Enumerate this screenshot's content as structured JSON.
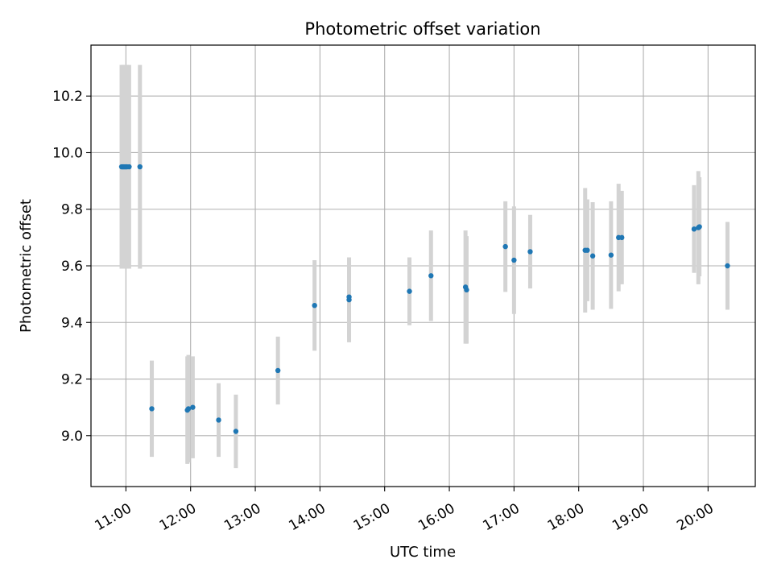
{
  "chart_data": {
    "type": "scatter",
    "title": "Photometric offset variation",
    "xlabel": "UTC time",
    "ylabel": "Photometric offset",
    "x_tick_labels": [
      "11:00",
      "12:00",
      "13:00",
      "14:00",
      "15:00",
      "16:00",
      "17:00",
      "18:00",
      "19:00",
      "20:00"
    ],
    "y_tick_labels": [
      "9.0",
      "9.2",
      "9.4",
      "9.6",
      "9.8",
      "10.0",
      "10.2"
    ],
    "x_ticks_hours": [
      11,
      12,
      13,
      14,
      15,
      16,
      17,
      18,
      19,
      20
    ],
    "y_ticks": [
      9.0,
      9.2,
      9.4,
      9.6,
      9.8,
      10.0,
      10.2
    ],
    "xlim_hours": [
      10.46,
      20.73
    ],
    "ylim": [
      8.82,
      10.38
    ],
    "grid": true,
    "marker_color": "#1f77b4",
    "errorbar_color": "#d3d3d3",
    "points": [
      {
        "t": "10:56",
        "y": 9.95,
        "err": 0.36
      },
      {
        "t": "10:57",
        "y": 9.95,
        "err": 0.36
      },
      {
        "t": "10:58",
        "y": 9.95,
        "err": 0.36
      },
      {
        "t": "10:59",
        "y": 9.95,
        "err": 0.36
      },
      {
        "t": "11:00",
        "y": 9.95,
        "err": 0.36
      },
      {
        "t": "11:01",
        "y": 9.95,
        "err": 0.36
      },
      {
        "t": "11:03",
        "y": 9.95,
        "err": 0.36
      },
      {
        "t": "11:13",
        "y": 9.95,
        "err": 0.36
      },
      {
        "t": "11:24",
        "y": 9.095,
        "err": 0.17
      },
      {
        "t": "11:57",
        "y": 9.09,
        "err": 0.19
      },
      {
        "t": "11:58",
        "y": 9.095,
        "err": 0.19
      },
      {
        "t": "12:02",
        "y": 9.1,
        "err": 0.18
      },
      {
        "t": "12:26",
        "y": 9.055,
        "err": 0.13
      },
      {
        "t": "12:42",
        "y": 9.015,
        "err": 0.13
      },
      {
        "t": "13:21",
        "y": 9.23,
        "err": 0.12
      },
      {
        "t": "13:55",
        "y": 9.46,
        "err": 0.16
      },
      {
        "t": "14:27",
        "y": 9.48,
        "err": 0.15
      },
      {
        "t": "14:27",
        "y": 9.49,
        "err": 0.14
      },
      {
        "t": "15:23",
        "y": 9.51,
        "err": 0.12
      },
      {
        "t": "15:43",
        "y": 9.565,
        "err": 0.16
      },
      {
        "t": "16:15",
        "y": 9.525,
        "err": 0.2
      },
      {
        "t": "16:16",
        "y": 9.515,
        "err": 0.19
      },
      {
        "t": "16:52",
        "y": 9.668,
        "err": 0.16
      },
      {
        "t": "17:00",
        "y": 9.62,
        "err": 0.19
      },
      {
        "t": "17:15",
        "y": 9.65,
        "err": 0.13
      },
      {
        "t": "18:06",
        "y": 9.655,
        "err": 0.22
      },
      {
        "t": "18:08",
        "y": 9.655,
        "err": 0.18
      },
      {
        "t": "18:13",
        "y": 9.635,
        "err": 0.19
      },
      {
        "t": "18:30",
        "y": 9.638,
        "err": 0.19
      },
      {
        "t": "18:37",
        "y": 9.7,
        "err": 0.19
      },
      {
        "t": "18:40",
        "y": 9.7,
        "err": 0.165
      },
      {
        "t": "19:47",
        "y": 9.73,
        "err": 0.155
      },
      {
        "t": "19:51",
        "y": 9.735,
        "err": 0.2
      },
      {
        "t": "19:52",
        "y": 9.738,
        "err": 0.175
      },
      {
        "t": "20:18",
        "y": 9.6,
        "err": 0.155
      }
    ]
  }
}
